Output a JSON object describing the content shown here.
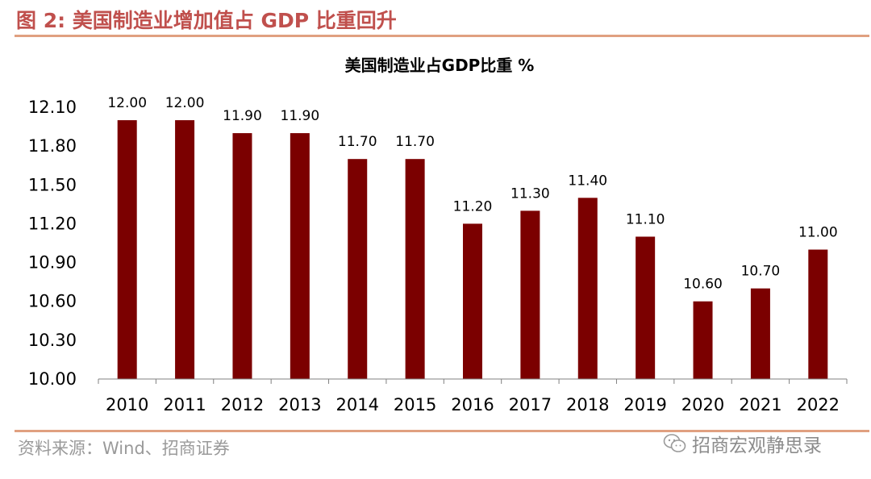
{
  "figure": {
    "title": "图 2:  美国制造业增加值占 GDP 比重回升",
    "source": "资料来源：Wind、招商证券",
    "watermark": "招商宏观静思录"
  },
  "colors": {
    "bar": "#7b0000",
    "accent": "#c0504d",
    "rule": "#e0a080"
  },
  "chart_data": {
    "type": "bar",
    "title": "美国制造业占GDP比重 %",
    "xlabel": "",
    "ylabel": "",
    "categories": [
      "2010",
      "2011",
      "2012",
      "2013",
      "2014",
      "2015",
      "2016",
      "2017",
      "2018",
      "2019",
      "2020",
      "2021",
      "2022"
    ],
    "values": [
      12.0,
      12.0,
      11.9,
      11.9,
      11.7,
      11.7,
      11.2,
      11.3,
      11.4,
      11.1,
      10.6,
      10.7,
      11.0
    ],
    "data_labels": [
      "12.00",
      "12.00",
      "11.90",
      "11.90",
      "11.70",
      "11.70",
      "11.20",
      "11.30",
      "11.40",
      "11.10",
      "10.60",
      "10.70",
      "11.00"
    ],
    "ylim": [
      10.0,
      12.1
    ],
    "yticks": [
      "10.00",
      "10.30",
      "10.60",
      "10.90",
      "11.20",
      "11.50",
      "11.80",
      "12.10"
    ],
    "grid": false,
    "legend": "none"
  }
}
